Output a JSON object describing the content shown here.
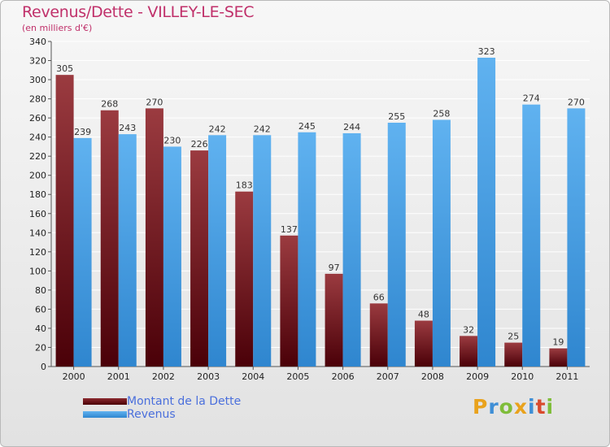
{
  "chart_data": {
    "type": "bar",
    "title": "Revenus/Dette - VILLEY-LE-SEC",
    "subtitle": "(en milliers d'€)",
    "categories": [
      "2000",
      "2001",
      "2002",
      "2003",
      "2004",
      "2005",
      "2006",
      "2007",
      "2008",
      "2009",
      "2010",
      "2011"
    ],
    "series": [
      {
        "name": "Montant de la Dette",
        "color": "#6b0f17",
        "values": [
          305,
          268,
          270,
          226,
          183,
          137,
          97,
          66,
          48,
          32,
          25,
          19
        ]
      },
      {
        "name": "Revenus",
        "color": "#4ea3e6",
        "values": [
          239,
          243,
          230,
          242,
          242,
          245,
          244,
          255,
          258,
          323,
          274,
          270
        ]
      }
    ],
    "ylim": [
      0,
      340
    ],
    "yticks": [
      0,
      20,
      40,
      60,
      80,
      100,
      120,
      140,
      160,
      180,
      200,
      220,
      240,
      260,
      280,
      300,
      320,
      340
    ],
    "grid": true,
    "legend": "bottom-left"
  },
  "brand": {
    "letters": [
      "P",
      "r",
      "o",
      "x",
      "i",
      "t",
      "i"
    ],
    "colors": [
      "#e9a21c",
      "#3f8fd6",
      "#7fbd3a",
      "#e9a21c",
      "#3f8fd6",
      "#d94a2d",
      "#7fbd3a"
    ]
  }
}
